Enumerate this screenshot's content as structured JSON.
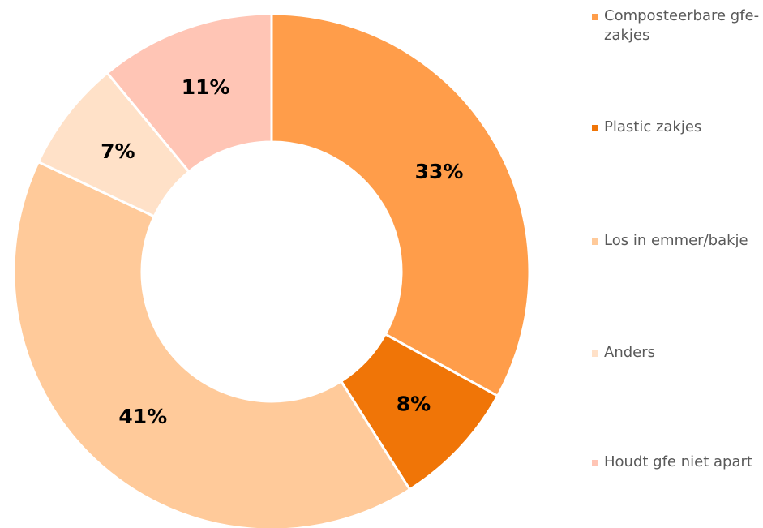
{
  "chart_data": {
    "type": "donut",
    "categories": [
      "Composteerbare gfe-zakjes",
      "Plastic zakjes",
      "Los in emmer/bakje",
      "Anders",
      "Houdt gfe niet apart"
    ],
    "values": [
      33,
      8,
      41,
      7,
      11
    ],
    "value_labels": [
      "33%",
      "8%",
      "41%",
      "7%",
      "11%"
    ],
    "colors": [
      "#FF9D4A",
      "#F07507",
      "#FFCA9A",
      "#FFE1C8",
      "#FFC5B5"
    ],
    "legend": "right"
  }
}
